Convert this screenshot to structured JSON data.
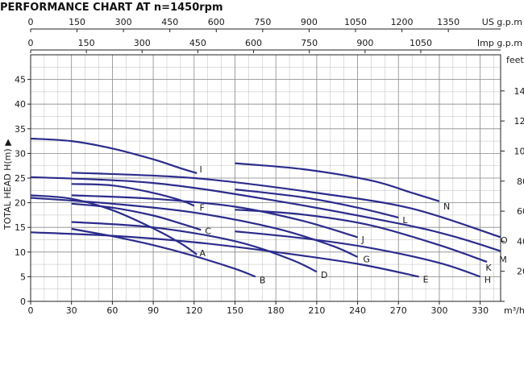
{
  "chart_data": {
    "type": "line",
    "title": "PERFORMANCE CHART AT n=1450rpm",
    "ylabel": "TOTAL HEAD H(m) ▶",
    "x_unit": "m³/h",
    "right_unit": "feet",
    "top1_unit": "US g.p.m",
    "top2_unit": "Imp g.p.m",
    "xlim": [
      0,
      345
    ],
    "ylim": [
      0,
      50
    ],
    "x_ticks": [
      0,
      30,
      60,
      90,
      120,
      150,
      180,
      210,
      240,
      270,
      300,
      330
    ],
    "y_ticks": [
      0,
      5,
      10,
      15,
      20,
      25,
      30,
      35,
      40,
      45
    ],
    "feet_ticks": [
      0,
      20,
      40,
      60,
      80,
      100,
      120,
      140
    ],
    "us_gpm_ticks": [
      0,
      150,
      300,
      450,
      600,
      750,
      900,
      1050,
      1200,
      1350
    ],
    "imp_gpm_ticks": [
      0,
      150,
      300,
      450,
      600,
      750,
      900,
      1050
    ],
    "grid": true,
    "series": [
      {
        "name": "A",
        "points": [
          [
            0,
            21.5
          ],
          [
            30,
            20.8
          ],
          [
            60,
            18.5
          ],
          [
            90,
            14.8
          ],
          [
            110,
            11.8
          ],
          [
            122,
            9.5
          ]
        ],
        "label_at": [
          124,
          9.8
        ]
      },
      {
        "name": "B",
        "points": [
          [
            30,
            14.7
          ],
          [
            60,
            13.2
          ],
          [
            90,
            11.4
          ],
          [
            120,
            9.2
          ],
          [
            150,
            6.6
          ],
          [
            165,
            5.0
          ]
        ],
        "label_at": [
          168,
          4.3
        ]
      },
      {
        "name": "C",
        "points": [
          [
            30,
            19.8
          ],
          [
            60,
            19.0
          ],
          [
            90,
            17.4
          ],
          [
            110,
            15.8
          ],
          [
            125,
            14.5
          ]
        ],
        "label_at": [
          128,
          14.3
        ]
      },
      {
        "name": "D",
        "points": [
          [
            30,
            16.1
          ],
          [
            90,
            15.0
          ],
          [
            150,
            12.2
          ],
          [
            190,
            8.6
          ],
          [
            210,
            6.0
          ]
        ],
        "label_at": [
          213,
          5.4
        ]
      },
      {
        "name": "E",
        "points": [
          [
            0,
            14.0
          ],
          [
            60,
            13.3
          ],
          [
            120,
            12.0
          ],
          [
            180,
            10.0
          ],
          [
            240,
            7.6
          ],
          [
            285,
            5.0
          ]
        ],
        "label_at": [
          288,
          4.5
        ]
      },
      {
        "name": "F",
        "points": [
          [
            30,
            23.8
          ],
          [
            60,
            23.5
          ],
          [
            90,
            22.0
          ],
          [
            110,
            20.5
          ],
          [
            120,
            19.4
          ]
        ],
        "label_at": [
          124,
          19.0
        ]
      },
      {
        "name": "G",
        "points": [
          [
            0,
            21.0
          ],
          [
            60,
            19.8
          ],
          [
            120,
            18.0
          ],
          [
            180,
            14.8
          ],
          [
            220,
            11.4
          ],
          [
            240,
            9.0
          ]
        ],
        "label_at": [
          244,
          8.6
        ]
      },
      {
        "name": "H",
        "points": [
          [
            150,
            14.2
          ],
          [
            200,
            12.8
          ],
          [
            250,
            10.8
          ],
          [
            300,
            7.8
          ],
          [
            330,
            5.0
          ]
        ],
        "label_at": [
          333,
          4.4
        ]
      },
      {
        "name": "I",
        "points": [
          [
            0,
            33.0
          ],
          [
            30,
            32.5
          ],
          [
            60,
            31.0
          ],
          [
            90,
            28.8
          ],
          [
            110,
            27.0
          ],
          [
            122,
            26.0
          ]
        ],
        "label_at": [
          124,
          26.8
        ]
      },
      {
        "name": "J",
        "points": [
          [
            30,
            21.5
          ],
          [
            90,
            20.8
          ],
          [
            150,
            19.2
          ],
          [
            200,
            16.3
          ],
          [
            240,
            13.0
          ]
        ],
        "label_at": [
          243,
          12.6
        ]
      },
      {
        "name": "K",
        "points": [
          [
            150,
            18.6
          ],
          [
            200,
            17.6
          ],
          [
            250,
            15.4
          ],
          [
            300,
            11.4
          ],
          [
            335,
            8.0
          ]
        ],
        "label_at": [
          334,
          6.9
        ]
      },
      {
        "name": "L",
        "points": [
          [
            150,
            22.7
          ],
          [
            200,
            21.1
          ],
          [
            240,
            19.0
          ],
          [
            270,
            17.0
          ]
        ],
        "label_at": [
          273,
          16.5
        ]
      },
      {
        "name": "M",
        "points": [
          [
            0,
            25.2
          ],
          [
            90,
            24.0
          ],
          [
            180,
            20.4
          ],
          [
            270,
            15.8
          ],
          [
            310,
            13.2
          ],
          [
            345,
            10.2
          ]
        ],
        "label_at": [
          344,
          8.5
        ]
      },
      {
        "name": "N",
        "points": [
          [
            150,
            28.0
          ],
          [
            200,
            26.8
          ],
          [
            250,
            24.5
          ],
          [
            280,
            22.0
          ],
          [
            300,
            20.3
          ]
        ],
        "label_at": [
          303,
          19.3
        ]
      },
      {
        "name": "O",
        "points": [
          [
            30,
            26.1
          ],
          [
            120,
            25.0
          ],
          [
            210,
            22.0
          ],
          [
            280,
            18.8
          ],
          [
            345,
            13.0
          ]
        ],
        "label_at": [
          345,
          12.4
        ]
      }
    ]
  }
}
